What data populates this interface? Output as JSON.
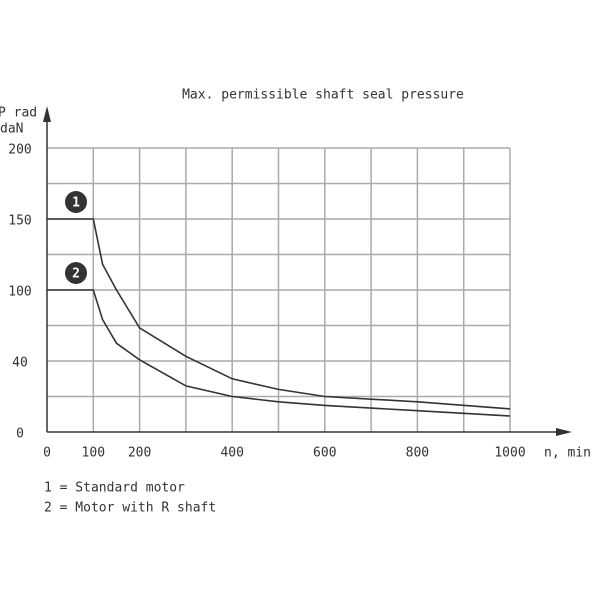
{
  "chart_data": {
    "type": "line",
    "title": "Max. permissible shaft seal pressure",
    "y_label_1": "P rad",
    "y_label_2": "daN",
    "x_label": "n, min",
    "x": [
      0,
      100,
      120,
      150,
      200,
      300,
      400,
      500,
      600,
      800,
      1000
    ],
    "series": [
      {
        "name": "1",
        "color": "#333333",
        "values": [
          150,
          150,
          118,
          100,
          68,
          44,
          30,
          24,
          20,
          17,
          13
        ]
      },
      {
        "name": "2",
        "color": "#333333",
        "values": [
          100,
          100,
          75,
          55,
          41,
          26,
          20,
          17,
          15,
          12,
          9
        ]
      }
    ],
    "legend": [
      "1 = Standard motor",
      "2 = Motor with R shaft"
    ],
    "xlim": [
      0,
      1000
    ],
    "xticks": [
      0,
      100,
      200,
      400,
      600,
      800,
      1000
    ],
    "ylim": [
      0,
      200
    ],
    "yticks": [
      0,
      40,
      100,
      150,
      200
    ],
    "grid": true
  }
}
